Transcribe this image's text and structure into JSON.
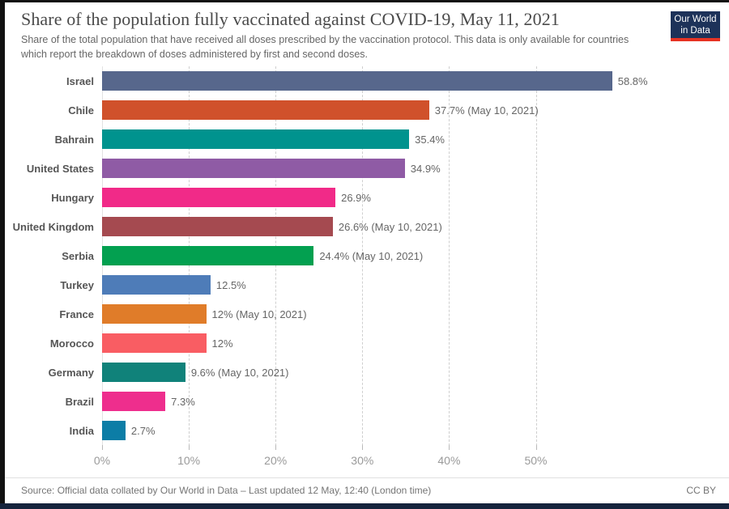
{
  "header": {
    "title": "Share of the population fully vaccinated against COVID-19, May 11, 2021",
    "subtitle": "Share of the total population that have received all doses prescribed by the vaccination protocol. This data is only available for countries which report the breakdown of doses administered by first and second doses.",
    "logo": {
      "line1": "Our World",
      "line2": "in Data",
      "bg_color": "#1d3259",
      "accent_color": "#e63323"
    }
  },
  "chart_data": {
    "type": "bar",
    "orientation": "horizontal",
    "title": "Share of the population fully vaccinated against COVID-19, May 11, 2021",
    "categories": [
      "Israel",
      "Chile",
      "Bahrain",
      "United States",
      "Hungary",
      "United Kingdom",
      "Serbia",
      "Turkey",
      "France",
      "Morocco",
      "Germany",
      "Brazil",
      "India"
    ],
    "values": [
      58.8,
      37.7,
      35.4,
      34.9,
      26.9,
      26.6,
      24.4,
      12.5,
      12,
      12,
      9.6,
      7.3,
      2.7
    ],
    "value_labels": [
      "58.8%",
      "37.7% (May 10, 2021)",
      "35.4%",
      "34.9%",
      "26.9%",
      "26.6% (May 10, 2021)",
      "24.4% (May 10, 2021)",
      "12.5%",
      "12% (May 10, 2021)",
      "12%",
      "9.6% (May 10, 2021)",
      "7.3%",
      "2.7%"
    ],
    "colors": [
      "#57678C",
      "#D0512B",
      "#00938E",
      "#8F5BA5",
      "#F12A88",
      "#A54A50",
      "#03A050",
      "#4E7CB8",
      "#E07C29",
      "#F95D63",
      "#10827A",
      "#EE2E8D",
      "#0C7DA6"
    ],
    "x_ticks": {
      "values": [
        0,
        10,
        20,
        30,
        40,
        50
      ],
      "labels": [
        "0%",
        "10%",
        "20%",
        "30%",
        "40%",
        "50%"
      ]
    },
    "xlabel": "",
    "ylabel": "",
    "xlim": [
      0,
      72
    ],
    "grid": true,
    "legend": false
  },
  "footer": {
    "source": "Source: Official data collated by Our World in Data – Last updated 12 May, 12:40 (London time)",
    "license": "CC BY"
  }
}
